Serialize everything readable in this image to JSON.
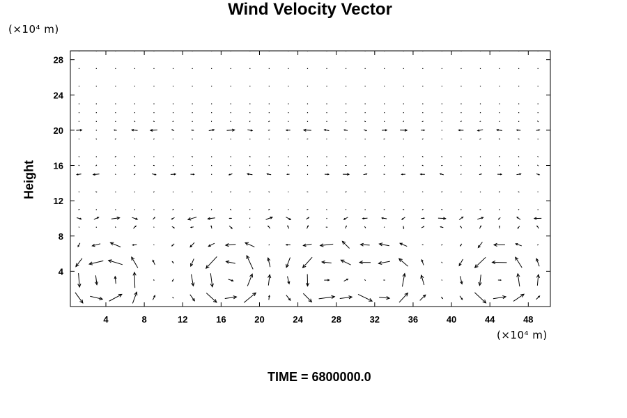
{
  "chart_data": {
    "type": "vector_field",
    "title": "Wind Velocity Vector",
    "xlabel": "",
    "ylabel": "Height",
    "x_unit_label": "(×10⁴ m)",
    "y_unit_label": "(×10⁴ m)",
    "xlim": [
      0.3,
      50.3
    ],
    "ylim": [
      0,
      29
    ],
    "xticks": [
      4,
      8,
      12,
      16,
      20,
      24,
      28,
      32,
      36,
      40,
      44,
      48
    ],
    "yticks": [
      4,
      8,
      12,
      16,
      20,
      24,
      28
    ],
    "grid_x": [
      1.2,
      3,
      5,
      7,
      9,
      11,
      13,
      15,
      17,
      19,
      21,
      23,
      25,
      27,
      29,
      31,
      33,
      35,
      37,
      39,
      41,
      43,
      45,
      47,
      49
    ],
    "grid_y": [
      1,
      3,
      5,
      7,
      9,
      10,
      11,
      13,
      15,
      16,
      17,
      19,
      20,
      21,
      22,
      23,
      25,
      27,
      29
    ],
    "vortex_centers": [
      [
        4,
        3
      ],
      [
        17,
        3.5
      ],
      [
        27,
        3.5
      ],
      [
        33,
        3
      ],
      [
        45,
        3
      ]
    ],
    "vortex_radius": 5.5,
    "jet_levels": [
      10,
      15,
      20
    ],
    "footer": "TIME = 6800000.0",
    "grid": false,
    "colors": {
      "vectors": "#000000",
      "axes": "#000000",
      "background": "#ffffff"
    }
  }
}
